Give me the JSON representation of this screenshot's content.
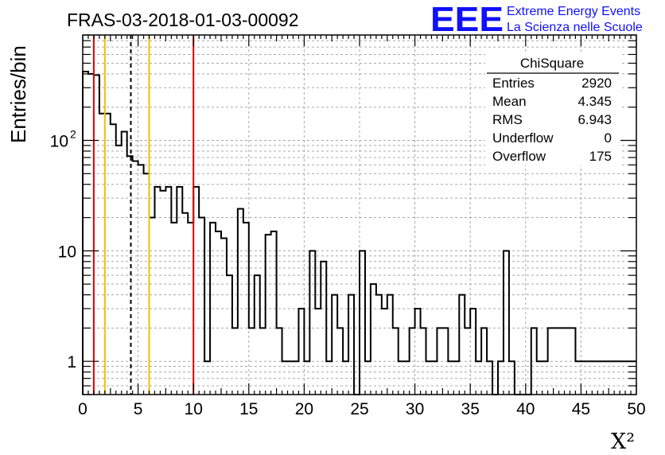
{
  "logo": {
    "mark": "EEE",
    "line1": "Extreme Energy Events",
    "line2": "La Scienza nelle Scuole"
  },
  "chart_data": {
    "type": "histogram",
    "title": "FRAS-03-2018-01-03-00092",
    "xlabel": "X²",
    "ylabel": "Entries/bin",
    "xlim": [
      0,
      50
    ],
    "ylim": [
      0.5,
      900
    ],
    "yscale": "log",
    "grid": true,
    "bin_width": 0.5,
    "bin_start": 0,
    "counts": [
      420,
      400,
      390,
      175,
      175,
      140,
      90,
      120,
      72,
      65,
      60,
      50,
      20,
      38,
      35,
      38,
      18,
      38,
      22,
      18,
      38,
      20,
      1,
      18,
      15,
      13,
      6,
      2,
      24,
      18,
      2,
      6,
      2,
      14,
      15,
      2,
      1,
      1,
      1,
      3,
      1,
      10,
      3,
      8,
      1,
      4,
      2,
      1,
      4,
      0,
      10,
      1,
      5,
      4,
      3,
      4,
      2,
      1,
      1,
      2,
      3,
      2,
      1,
      1,
      2,
      2,
      1,
      1,
      4,
      2,
      3,
      1,
      2,
      1,
      0,
      1,
      10,
      1,
      0,
      0,
      0,
      2,
      1,
      1,
      2,
      2,
      2,
      2,
      2,
      1,
      1,
      1,
      1,
      1,
      1,
      1,
      1,
      1,
      1,
      1
    ],
    "x_ticks": [
      0,
      5,
      10,
      15,
      20,
      25,
      30,
      35,
      40,
      45,
      50
    ],
    "x_tick_labels": [
      "0",
      "5",
      "10",
      "15",
      "20",
      "25",
      "30",
      "35",
      "40",
      "45",
      "50"
    ],
    "y_ticks": [
      1,
      10,
      100
    ],
    "y_tick_labels": [
      "1",
      "10",
      "10²"
    ],
    "vertical_lines": [
      {
        "x": 1,
        "color": "#e00000",
        "style": "solid"
      },
      {
        "x": 2,
        "color": "#f0c000",
        "style": "solid"
      },
      {
        "x": 4.345,
        "color": "#000000",
        "style": "dashed"
      },
      {
        "x": 6,
        "color": "#f0c000",
        "style": "solid"
      },
      {
        "x": 10,
        "color": "#e00000",
        "style": "solid"
      }
    ],
    "stats_box": {
      "title": "ChiSquare",
      "rows": [
        {
          "label": "Entries",
          "value": "2920"
        },
        {
          "label": "Mean",
          "value": "4.345"
        },
        {
          "label": "RMS",
          "value": "6.943"
        },
        {
          "label": "Underflow",
          "value": "0"
        },
        {
          "label": "Overflow",
          "value": "175"
        }
      ]
    }
  }
}
